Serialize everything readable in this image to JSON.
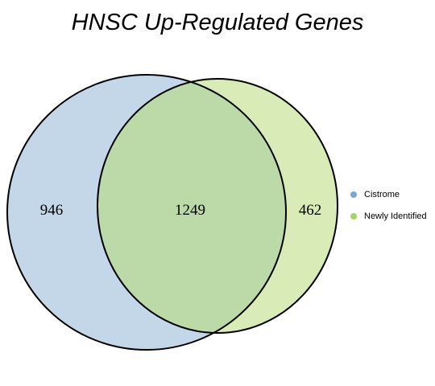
{
  "title": "HNSC Up-Regulated Genes",
  "sets": [
    {
      "name": "Cistrome",
      "fill": "#c3d7e9",
      "legend_color": "#7ba7cc"
    },
    {
      "name": "Newly Identified",
      "fill": "#d9ecb7",
      "legend_color": "#a5d46a"
    }
  ],
  "intersection_fill": "#bcd9a8",
  "counts": {
    "cistrome_only": "946",
    "both": "1249",
    "newly_identified_only": "462"
  }
}
